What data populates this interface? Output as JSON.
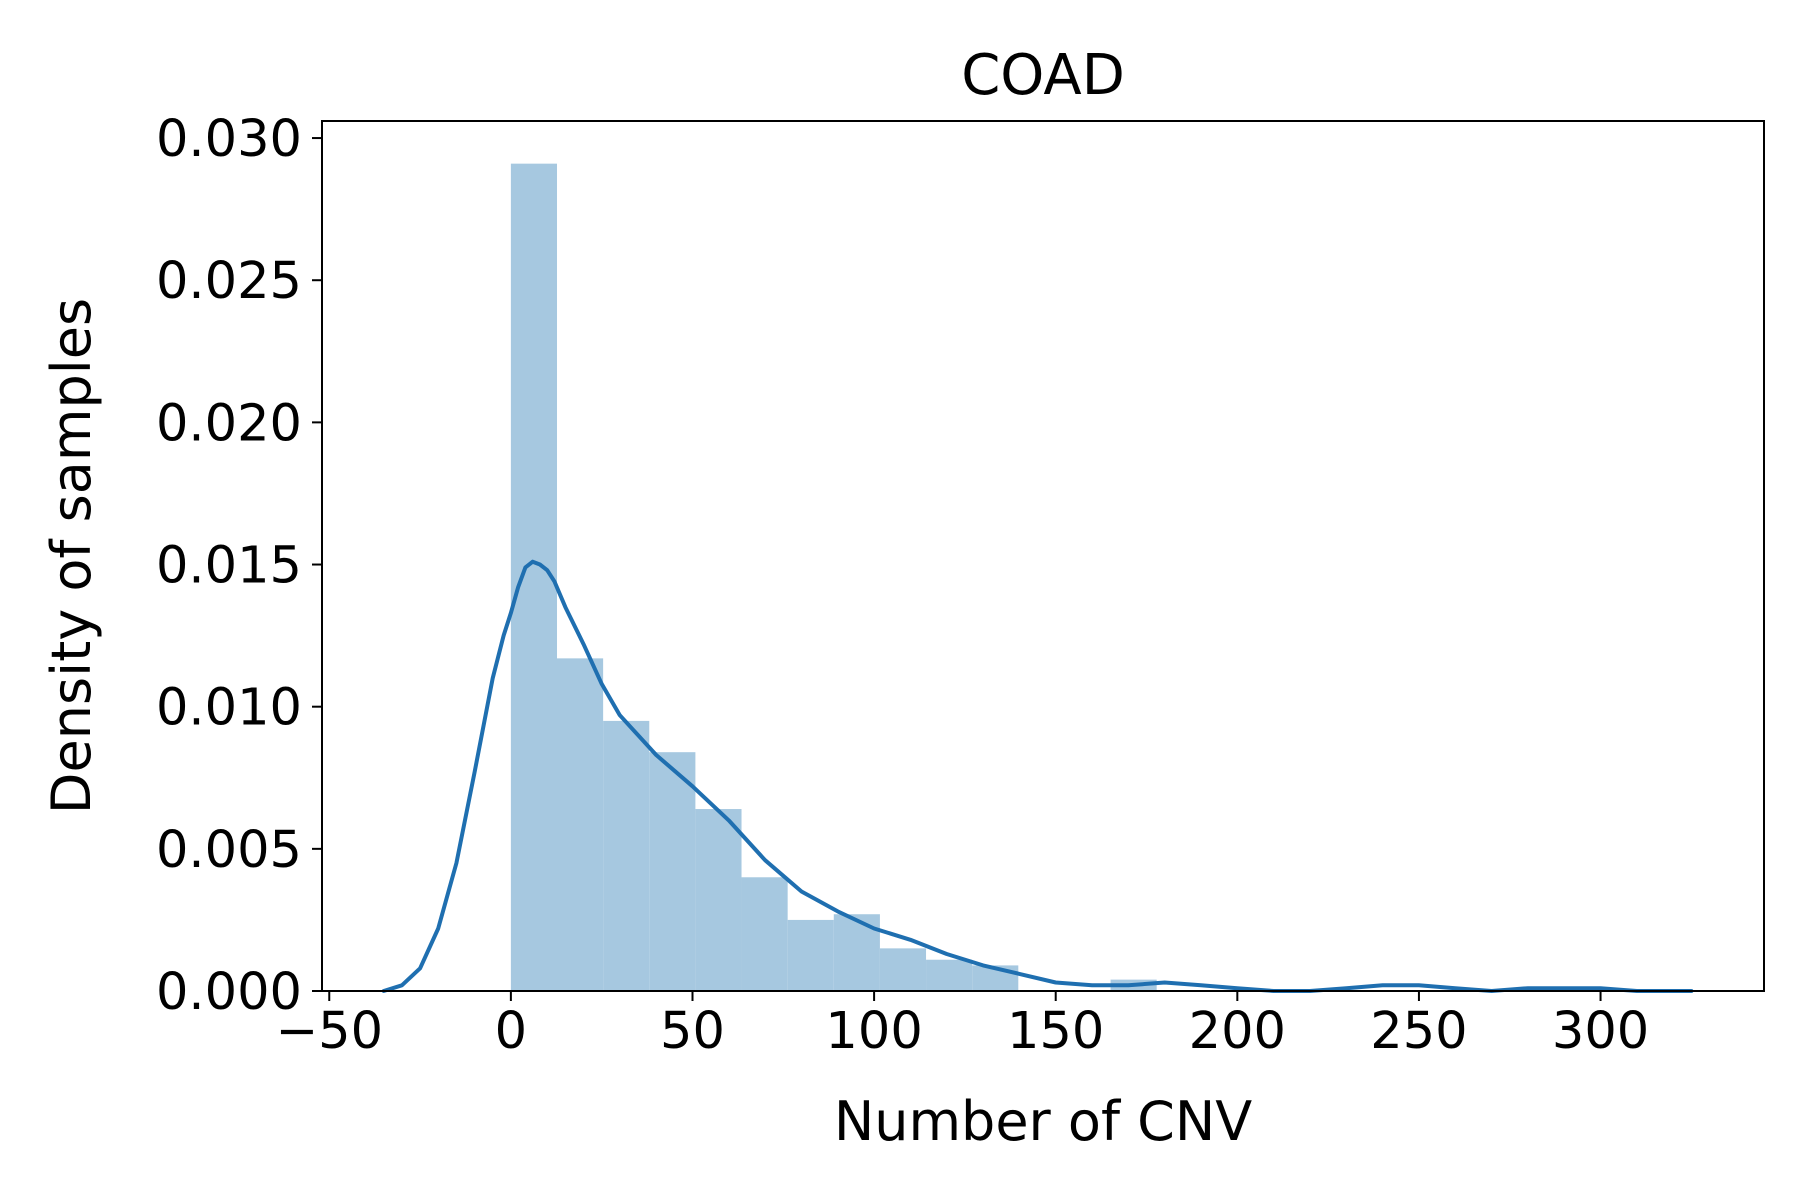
{
  "chart_data": {
    "type": "bar",
    "title": "COAD",
    "xlabel": "Number of CNV",
    "ylabel": "Density of samples",
    "xlim": [
      -52,
      345
    ],
    "ylim": [
      0,
      0.0306
    ],
    "xticks": [
      {
        "value": -50,
        "label": "−50"
      },
      {
        "value": 0,
        "label": "0"
      },
      {
        "value": 50,
        "label": "50"
      },
      {
        "value": 100,
        "label": "100"
      },
      {
        "value": 150,
        "label": "150"
      },
      {
        "value": 200,
        "label": "200"
      },
      {
        "value": 250,
        "label": "250"
      },
      {
        "value": 300,
        "label": "300"
      }
    ],
    "yticks": [
      {
        "value": 0.0,
        "label": "0.000"
      },
      {
        "value": 0.005,
        "label": "0.005"
      },
      {
        "value": 0.01,
        "label": "0.010"
      },
      {
        "value": 0.015,
        "label": "0.015"
      },
      {
        "value": 0.02,
        "label": "0.020"
      },
      {
        "value": 0.025,
        "label": "0.025"
      },
      {
        "value": 0.03,
        "label": "0.030"
      }
    ],
    "histogram": {
      "bin_edges": [
        0,
        12.7,
        25.4,
        38.1,
        50.8,
        63.5,
        76.2,
        88.9,
        101.6,
        114.3,
        127.0,
        139.7,
        152.4,
        165.1,
        177.8,
        190.5,
        203.2,
        215.9,
        228.6,
        241.3,
        254.0,
        266.7,
        279.4,
        292.1,
        304.8,
        317.5,
        330.2
      ],
      "densities": [
        0.0291,
        0.0117,
        0.0095,
        0.0084,
        0.0064,
        0.004,
        0.0025,
        0.0027,
        0.0015,
        0.0011,
        0.0009,
        0.0,
        0.0,
        0.0004,
        0.0,
        0.0,
        0.0,
        0.0,
        0.0,
        0.0,
        0.0,
        0.0,
        0.0,
        0.0,
        0.0,
        0.0
      ],
      "color": "#a6c8e0"
    },
    "kde": {
      "x": [
        -35,
        -30,
        -25,
        -20,
        -15,
        -10,
        -5,
        -2,
        0,
        2,
        4,
        6,
        8,
        10,
        12,
        15,
        20,
        25,
        30,
        40,
        50,
        60,
        70,
        80,
        90,
        100,
        110,
        120,
        130,
        140,
        150,
        160,
        170,
        180,
        190,
        200,
        210,
        220,
        230,
        240,
        250,
        260,
        270,
        280,
        290,
        300,
        310,
        325
      ],
      "y": [
        0.0,
        0.0002,
        0.0008,
        0.0022,
        0.0045,
        0.0077,
        0.011,
        0.0125,
        0.0133,
        0.0142,
        0.0149,
        0.0151,
        0.015,
        0.0148,
        0.0144,
        0.0135,
        0.0122,
        0.0108,
        0.0097,
        0.0083,
        0.0072,
        0.006,
        0.0046,
        0.0035,
        0.0028,
        0.0022,
        0.0018,
        0.0013,
        0.0009,
        0.0006,
        0.0003,
        0.0002,
        0.0002,
        0.0003,
        0.0002,
        0.0001,
        0.0,
        0.0,
        0.0001,
        0.0002,
        0.0002,
        0.0001,
        0.0,
        0.0001,
        0.0001,
        0.0001,
        0.0,
        0.0
      ],
      "color": "#1f6fb0"
    },
    "grid": false,
    "legend": "none"
  }
}
